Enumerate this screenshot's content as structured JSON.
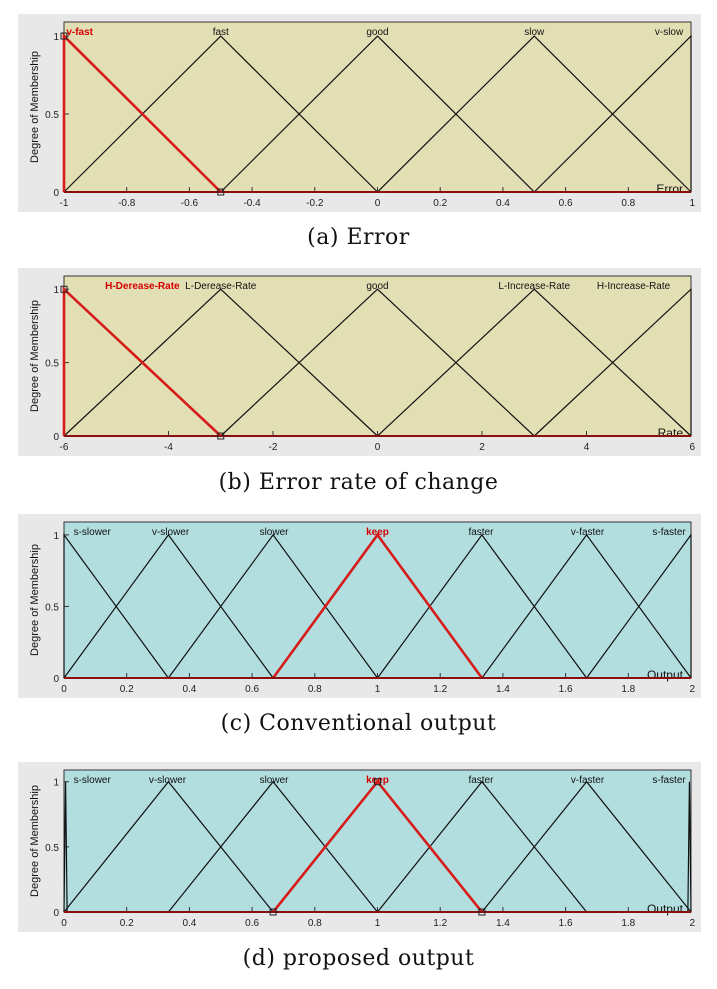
{
  "panels": [
    {
      "caption": "(a) Error",
      "ylabel": "Degree of Membership",
      "xlabel": "Error",
      "bg": "#e3dfb4",
      "outer_bg": "#e8e8e8",
      "chart_data": {
        "type": "line",
        "xlim": [
          -1,
          1
        ],
        "ylim": [
          0,
          1
        ],
        "xticks": [
          -1,
          -0.8,
          -0.6,
          -0.4,
          -0.2,
          0,
          0.2,
          0.4,
          0.6,
          0.8,
          1
        ],
        "xtick_labels": [
          "-1",
          "-0.8",
          "-0.6",
          "-0.4",
          "-0.2",
          "0",
          "0.2",
          "0.4",
          "0.6",
          "0.8",
          "1"
        ],
        "yticks": [
          0,
          0.5,
          1
        ],
        "ytick_labels": [
          "0",
          "0.5",
          "1"
        ],
        "series": [
          {
            "name": "v-fast",
            "x": [
              -1,
              -1,
              -0.5
            ],
            "y": [
              0,
              1,
              0
            ],
            "highlight": true
          },
          {
            "name": "fast",
            "x": [
              -1,
              -0.5,
              0
            ],
            "y": [
              0,
              1,
              0
            ],
            "highlight": false
          },
          {
            "name": "good",
            "x": [
              -0.5,
              0,
              0.5
            ],
            "y": [
              0,
              1,
              0
            ],
            "highlight": false
          },
          {
            "name": "slow",
            "x": [
              0,
              0.5,
              1
            ],
            "y": [
              0,
              1,
              0
            ],
            "highlight": false
          },
          {
            "name": "v-slow",
            "x": [
              0.5,
              1,
              1
            ],
            "y": [
              0,
              1,
              0
            ],
            "highlight": false
          }
        ],
        "label_x": [
          -0.95,
          -0.5,
          0,
          0.5,
          0.93
        ],
        "handles": [
          [
            -1,
            1
          ],
          [
            -0.5,
            0
          ]
        ]
      }
    },
    {
      "caption": "(b) Error rate of change",
      "ylabel": "Degree of Membership",
      "xlabel": "Rate",
      "bg": "#e3dfb4",
      "outer_bg": "#e8e8e8",
      "chart_data": {
        "type": "line",
        "xlim": [
          -6,
          6
        ],
        "ylim": [
          0,
          1
        ],
        "xticks": [
          -6,
          -4,
          -2,
          0,
          2,
          4,
          6
        ],
        "xtick_labels": [
          "-6",
          "-4",
          "-2",
          "0",
          "2",
          "4",
          "6"
        ],
        "yticks": [
          0,
          0.5,
          1
        ],
        "ytick_labels": [
          "0",
          "0.5",
          "1"
        ],
        "series": [
          {
            "name": "H-Derease-Rate",
            "x": [
              -6,
              -6,
              -3
            ],
            "y": [
              0,
              1,
              0
            ],
            "highlight": true
          },
          {
            "name": "L-Derease-Rate",
            "x": [
              -6,
              -3,
              0
            ],
            "y": [
              0,
              1,
              0
            ],
            "highlight": false
          },
          {
            "name": "good",
            "x": [
              -3,
              0,
              3
            ],
            "y": [
              0,
              1,
              0
            ],
            "highlight": false
          },
          {
            "name": "L-Increase-Rate",
            "x": [
              0,
              3,
              6
            ],
            "y": [
              0,
              1,
              0
            ],
            "highlight": false
          },
          {
            "name": "H-Increase-Rate",
            "x": [
              3,
              6,
              6
            ],
            "y": [
              0,
              1,
              0
            ],
            "highlight": false
          }
        ],
        "label_x": [
          -4.5,
          -3,
          0,
          3,
          4.9
        ],
        "handles": [
          [
            -6,
            1
          ],
          [
            -3,
            0
          ]
        ]
      }
    },
    {
      "caption": "(c) Conventional output",
      "ylabel": "Degree of Membership",
      "xlabel": "Output",
      "bg": "#b3dedf",
      "outer_bg": "#e8e8e8",
      "chart_data": {
        "type": "line",
        "xlim": [
          0,
          2
        ],
        "ylim": [
          0,
          1
        ],
        "xticks": [
          0,
          0.2,
          0.4,
          0.6,
          0.8,
          1,
          1.2,
          1.4,
          1.6,
          1.8,
          2
        ],
        "xtick_labels": [
          "0",
          "0.2",
          "0.4",
          "0.6",
          "0.8",
          "1",
          "1.2",
          "1.4",
          "1.6",
          "1.8",
          "2"
        ],
        "yticks": [
          0,
          0.5,
          1
        ],
        "ytick_labels": [
          "0",
          "0.5",
          "1"
        ],
        "series": [
          {
            "name": "s-slower",
            "x": [
              0,
              0,
              0.333
            ],
            "y": [
              0,
              1,
              0
            ],
            "highlight": false
          },
          {
            "name": "v-slower",
            "x": [
              0,
              0.333,
              0.667
            ],
            "y": [
              0,
              1,
              0
            ],
            "highlight": false
          },
          {
            "name": "slower",
            "x": [
              0.333,
              0.667,
              1
            ],
            "y": [
              0,
              1,
              0
            ],
            "highlight": false
          },
          {
            "name": "keep",
            "x": [
              0.667,
              1,
              1.333
            ],
            "y": [
              0,
              1,
              0
            ],
            "highlight": true
          },
          {
            "name": "faster",
            "x": [
              1,
              1.333,
              1.667
            ],
            "y": [
              0,
              1,
              0
            ],
            "highlight": false
          },
          {
            "name": "v-faster",
            "x": [
              1.333,
              1.667,
              2
            ],
            "y": [
              0,
              1,
              0
            ],
            "highlight": false
          },
          {
            "name": "s-faster",
            "x": [
              1.667,
              2,
              2
            ],
            "y": [
              0,
              1,
              0
            ],
            "highlight": false
          }
        ],
        "label_x": [
          0.09,
          0.34,
          0.67,
          1,
          1.33,
          1.67,
          1.93
        ],
        "handles": []
      }
    },
    {
      "caption": "(d) proposed output",
      "ylabel": "Degree of Membership",
      "xlabel": "Output",
      "bg": "#b3dedf",
      "outer_bg": "#e8e8e8",
      "chart_data": {
        "type": "line",
        "xlim": [
          0,
          2
        ],
        "ylim": [
          0,
          1
        ],
        "xticks": [
          0,
          0.2,
          0.4,
          0.6,
          0.8,
          1,
          1.2,
          1.4,
          1.6,
          1.8,
          2
        ],
        "xtick_labels": [
          "0",
          "0.2",
          "0.4",
          "0.6",
          "0.8",
          "1",
          "1.2",
          "1.4",
          "1.6",
          "1.8",
          "2"
        ],
        "yticks": [
          0,
          0.5,
          1
        ],
        "ytick_labels": [
          "0",
          "0.5",
          "1"
        ],
        "series": [
          {
            "name": "s-slower",
            "x": [
              0,
              0.005,
              0.01
            ],
            "y": [
              0,
              1,
              0
            ],
            "highlight": false
          },
          {
            "name": "v-slower",
            "x": [
              0,
              0.333,
              0.667
            ],
            "y": [
              0,
              1,
              0
            ],
            "highlight": false
          },
          {
            "name": "slower",
            "x": [
              0.333,
              0.667,
              1
            ],
            "y": [
              0,
              1,
              0
            ],
            "highlight": false
          },
          {
            "name": "keep",
            "x": [
              0.667,
              1,
              1.333
            ],
            "y": [
              0,
              1,
              0
            ],
            "highlight": true
          },
          {
            "name": "faster",
            "x": [
              1,
              1.333,
              1.667
            ],
            "y": [
              0,
              1,
              0
            ],
            "highlight": false
          },
          {
            "name": "v-faster",
            "x": [
              1.333,
              1.667,
              2
            ],
            "y": [
              0,
              1,
              0
            ],
            "highlight": false
          },
          {
            "name": "s-faster",
            "x": [
              1.99,
              1.995,
              2
            ],
            "y": [
              0,
              1,
              0
            ],
            "highlight": false
          }
        ],
        "label_x": [
          0.09,
          0.33,
          0.67,
          1,
          1.33,
          1.67,
          1.93
        ],
        "handles": [
          [
            1,
            1
          ],
          [
            0.667,
            0
          ],
          [
            1.333,
            0
          ]
        ]
      }
    }
  ]
}
